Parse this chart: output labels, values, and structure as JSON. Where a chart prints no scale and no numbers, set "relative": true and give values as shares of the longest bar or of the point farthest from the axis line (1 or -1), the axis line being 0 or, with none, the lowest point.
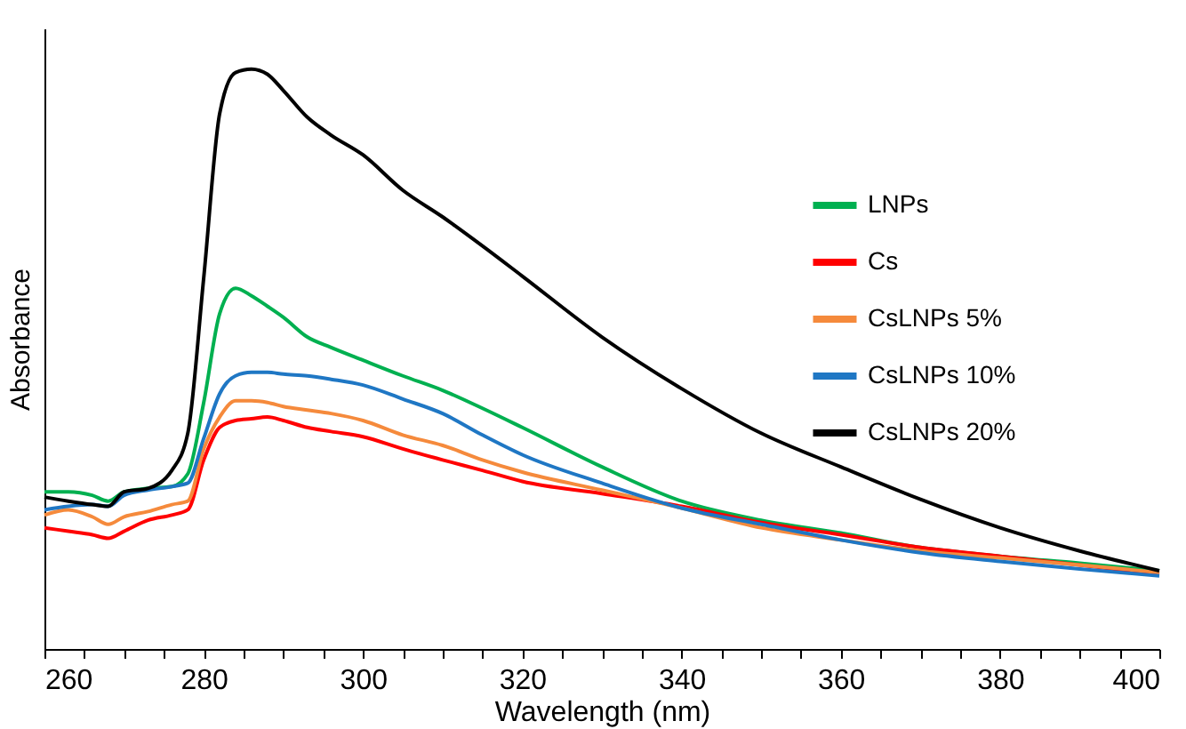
{
  "chart_data": {
    "type": "line",
    "relative": true,
    "xlabel": "Wavelength (nm)",
    "ylabel": "Absorbance",
    "xlim": [
      260,
      400
    ],
    "xticks": [
      260,
      {
        "value": 265,
        "label": null
      },
      {
        "value": 270,
        "label": null
      },
      {
        "value": 275,
        "label": null
      },
      280,
      {
        "value": 285,
        "label": null
      },
      {
        "value": 290,
        "label": null
      },
      {
        "value": 295,
        "label": null
      },
      300,
      {
        "value": 305,
        "label": null
      },
      {
        "value": 310,
        "label": null
      },
      {
        "value": 315,
        "label": null
      },
      320,
      {
        "value": 325,
        "label": null
      },
      {
        "value": 330,
        "label": null
      },
      {
        "value": 335,
        "label": null
      },
      340,
      {
        "value": 345,
        "label": null
      },
      {
        "value": 350,
        "label": null
      },
      {
        "value": 355,
        "label": null
      },
      360,
      {
        "value": 365,
        "label": null
      },
      {
        "value": 370,
        "label": null
      },
      {
        "value": 375,
        "label": null
      },
      380,
      {
        "value": 385,
        "label": null
      },
      {
        "value": 390,
        "label": null
      },
      {
        "value": 395,
        "label": null
      },
      400
    ],
    "x": [
      260,
      263,
      266,
      268,
      270,
      273,
      276,
      278,
      280,
      282,
      284,
      286,
      288,
      290,
      293,
      296,
      300,
      305,
      310,
      315,
      320,
      330,
      340,
      350,
      360,
      370,
      380,
      390,
      400
    ],
    "legend": "top right",
    "grid": false,
    "marker": "none",
    "line_style": "solid",
    "tick_labels": "x",
    "series": [
      {
        "name": "LNPs",
        "color": "#00b050",
        "values": [
          0.271,
          0.271,
          0.265,
          0.255,
          0.271,
          0.277,
          0.28,
          0.302,
          0.425,
          0.578,
          0.622,
          0.609,
          0.591,
          0.572,
          0.538,
          0.52,
          0.498,
          0.471,
          0.446,
          0.415,
          0.382,
          0.314,
          0.255,
          0.222,
          0.2,
          0.175,
          0.16,
          0.148,
          0.135
        ]
      },
      {
        "name": "Cs",
        "color": "#ff0000",
        "values": [
          0.209,
          0.203,
          0.197,
          0.191,
          0.203,
          0.222,
          0.231,
          0.24,
          0.326,
          0.382,
          0.394,
          0.397,
          0.4,
          0.394,
          0.382,
          0.375,
          0.366,
          0.345,
          0.326,
          0.308,
          0.289,
          0.268,
          0.246,
          0.218,
          0.197,
          0.175,
          0.16,
          0.145,
          0.129
        ]
      },
      {
        "name": "CsLNPs 5%",
        "color": "#f58a3c",
        "values": [
          0.231,
          0.24,
          0.228,
          0.215,
          0.228,
          0.237,
          0.249,
          0.255,
          0.345,
          0.4,
          0.428,
          0.428,
          0.425,
          0.418,
          0.412,
          0.406,
          0.394,
          0.369,
          0.351,
          0.326,
          0.305,
          0.274,
          0.243,
          0.209,
          0.188,
          0.169,
          0.157,
          0.145,
          0.132
        ]
      },
      {
        "name": "CsLNPs 10%",
        "color": "#1f77c4",
        "values": [
          0.24,
          0.246,
          0.249,
          0.246,
          0.265,
          0.274,
          0.28,
          0.286,
          0.363,
          0.44,
          0.471,
          0.477,
          0.477,
          0.474,
          0.471,
          0.465,
          0.455,
          0.431,
          0.406,
          0.369,
          0.335,
          0.286,
          0.243,
          0.215,
          0.188,
          0.166,
          0.151,
          0.138,
          0.126
        ]
      },
      {
        "name": "CsLNPs 20%",
        "color": "#000000",
        "values": [
          0.262,
          0.255,
          0.249,
          0.246,
          0.271,
          0.277,
          0.308,
          0.372,
          0.64,
          0.923,
          0.994,
          1.0,
          0.991,
          0.963,
          0.917,
          0.886,
          0.852,
          0.791,
          0.745,
          0.695,
          0.643,
          0.538,
          0.449,
          0.372,
          0.314,
          0.258,
          0.209,
          0.169,
          0.135
        ]
      }
    ]
  }
}
